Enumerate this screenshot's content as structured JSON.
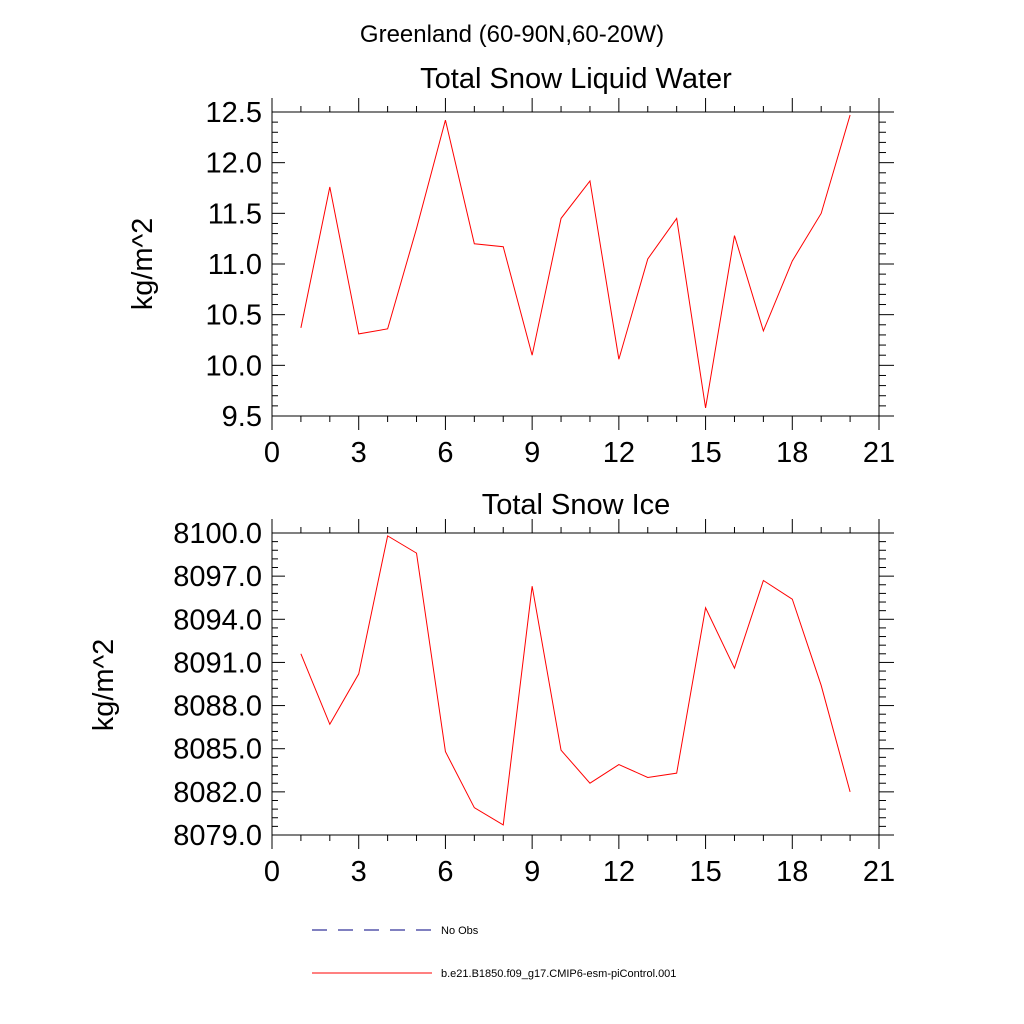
{
  "figure": {
    "suptitle": "Greenland (60-90N,60-20W)",
    "colors": {
      "model": "#ff0000",
      "obs": "#000080",
      "axis": "#000000"
    }
  },
  "legend": {
    "entries": [
      {
        "label": "No Obs",
        "style": "dashed",
        "color": "#000080"
      },
      {
        "label": "b.e21.B1850.f09_g17.CMIP6-esm-piControl.001",
        "style": "solid",
        "color": "#ff0000"
      }
    ]
  },
  "chart_data": [
    {
      "type": "line",
      "title": "Total Snow Liquid Water",
      "xlabel": "",
      "ylabel": "kg/m^2",
      "xlim": [
        0,
        21
      ],
      "ylim": [
        9.5,
        12.5
      ],
      "xticks": [
        0,
        3,
        6,
        9,
        12,
        15,
        18,
        21
      ],
      "xtick_labels": [
        "0",
        "3",
        "6",
        "9",
        "12",
        "15",
        "18",
        "21"
      ],
      "yticks": [
        9.5,
        10.0,
        10.5,
        11.0,
        11.5,
        12.0,
        12.5
      ],
      "ytick_labels": [
        "9.5",
        "10.0",
        "10.5",
        "11.0",
        "11.5",
        "12.0",
        "12.5"
      ],
      "series": [
        {
          "name": "b.e21.B1850.f09_g17.CMIP6-esm-piControl.001",
          "color": "#ff0000",
          "x": [
            1,
            2,
            3,
            4,
            5,
            6,
            7,
            8,
            9,
            10,
            11,
            12,
            13,
            14,
            15,
            16,
            17,
            18,
            19,
            20
          ],
          "values": [
            10.37,
            11.76,
            10.31,
            10.36,
            11.35,
            12.42,
            11.2,
            11.17,
            10.1,
            11.45,
            11.82,
            10.06,
            11.05,
            11.45,
            9.58,
            11.28,
            10.34,
            11.03,
            11.5,
            12.47
          ]
        }
      ]
    },
    {
      "type": "line",
      "title": "Total Snow Ice",
      "xlabel": "",
      "ylabel": "kg/m^2",
      "xlim": [
        0,
        21
      ],
      "ylim": [
        8079.0,
        8100.0
      ],
      "xticks": [
        0,
        3,
        6,
        9,
        12,
        15,
        18,
        21
      ],
      "xtick_labels": [
        "0",
        "3",
        "6",
        "9",
        "12",
        "15",
        "18",
        "21"
      ],
      "yticks": [
        8079.0,
        8082.0,
        8085.0,
        8088.0,
        8091.0,
        8094.0,
        8097.0,
        8100.0
      ],
      "ytick_labels": [
        "8079.0",
        "8082.0",
        "8085.0",
        "8088.0",
        "8091.0",
        "8094.0",
        "8097.0",
        "8100.0"
      ],
      "series": [
        {
          "name": "b.e21.B1850.f09_g17.CMIP6-esm-piControl.001",
          "color": "#ff0000",
          "x": [
            1,
            2,
            3,
            4,
            5,
            6,
            7,
            8,
            9,
            10,
            11,
            12,
            13,
            14,
            15,
            16,
            17,
            18,
            19,
            20
          ],
          "values": [
            8091.6,
            8086.7,
            8090.2,
            8099.8,
            8098.6,
            8084.8,
            8080.9,
            8079.7,
            8096.3,
            8084.9,
            8082.6,
            8083.9,
            8083.0,
            8083.3,
            8094.8,
            8090.6,
            8096.7,
            8095.4,
            8089.4,
            8082.0
          ]
        }
      ]
    }
  ]
}
